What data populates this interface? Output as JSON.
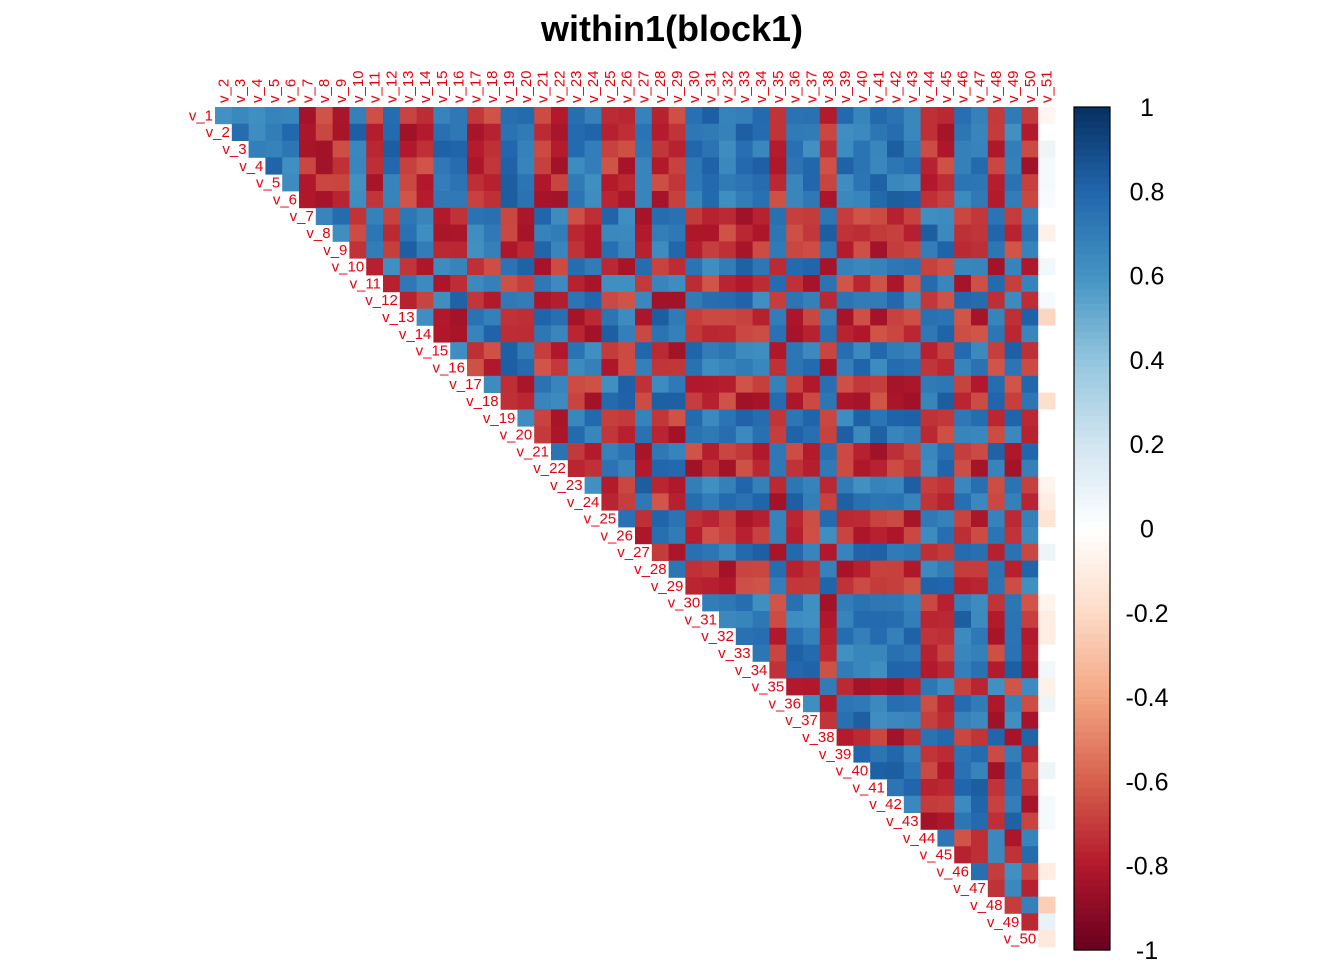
{
  "chart_data": {
    "type": "heatmap",
    "layout": "upper-triangle",
    "title": "within1(block1)",
    "row_labels": [
      "v_1",
      "v_2",
      "v_3",
      "v_4",
      "v_5",
      "v_6",
      "v_7",
      "v_8",
      "v_9",
      "v_10",
      "v_11",
      "v_12",
      "v_13",
      "v_14",
      "v_15",
      "v_16",
      "v_17",
      "v_18",
      "v_19",
      "v_20",
      "v_21",
      "v_22",
      "v_23",
      "v_24",
      "v_25",
      "v_26",
      "v_27",
      "v_28",
      "v_29",
      "v_30",
      "v_31",
      "v_32",
      "v_33",
      "v_34",
      "v_35",
      "v_36",
      "v_37",
      "v_38",
      "v_39",
      "v_40",
      "v_41",
      "v_42",
      "v_43",
      "v_44",
      "v_45",
      "v_46",
      "v_47",
      "v_48",
      "v_49",
      "v_50"
    ],
    "col_labels": [
      "v_2",
      "v_3",
      "v_4",
      "v_5",
      "v_6",
      "v_7",
      "v_8",
      "v_9",
      "v_10",
      "v_11",
      "v_12",
      "v_13",
      "v_14",
      "v_15",
      "v_16",
      "v_17",
      "v_18",
      "v_19",
      "v_20",
      "v_21",
      "v_22",
      "v_23",
      "v_24",
      "v_25",
      "v_26",
      "v_27",
      "v_28",
      "v_29",
      "v_30",
      "v_31",
      "v_32",
      "v_33",
      "v_34",
      "v_35",
      "v_36",
      "v_37",
      "v_38",
      "v_39",
      "v_40",
      "v_41",
      "v_42",
      "v_43",
      "v_44",
      "v_45",
      "v_46",
      "v_47",
      "v_48",
      "v_49",
      "v_50",
      "v_51"
    ],
    "sign_pattern": "++++++---+-+--++--++--++--+--+++++-++-+++++--++-+-",
    "positive_value": 0.72,
    "negative_value": -0.74,
    "v_51_column": [
      -0.05,
      0.0,
      0.08,
      0.05,
      0.05,
      0.03,
      0.0,
      -0.08,
      0.0,
      0.06,
      0.0,
      0.04,
      -0.22,
      0.0,
      0.0,
      0.0,
      0.0,
      -0.18,
      0.0,
      0.0,
      0.0,
      0.0,
      -0.06,
      -0.1,
      -0.15,
      0.0,
      0.08,
      0.0,
      0.0,
      -0.06,
      -0.1,
      -0.1,
      0.0,
      0.06,
      -0.08,
      0.08,
      0.0,
      0.0,
      0.0,
      0.08,
      0.0,
      0.05,
      0.05,
      0.0,
      0.0,
      -0.1,
      0.0,
      -0.25,
      0.1,
      -0.12
    ],
    "colorbar": {
      "ticks": [
        "1",
        "0.8",
        "0.6",
        "0.4",
        "0.2",
        "0",
        "-0.2",
        "-0.4",
        "-0.6",
        "-0.8",
        "-1"
      ],
      "range": [
        -1,
        1
      ],
      "colors": [
        "#67001f",
        "#b2182b",
        "#d6604d",
        "#f4a582",
        "#fddbc7",
        "#ffffff",
        "#d1e5f0",
        "#92c5de",
        "#4393c3",
        "#2166ac",
        "#053061"
      ]
    },
    "label_color": "#e8000b"
  }
}
